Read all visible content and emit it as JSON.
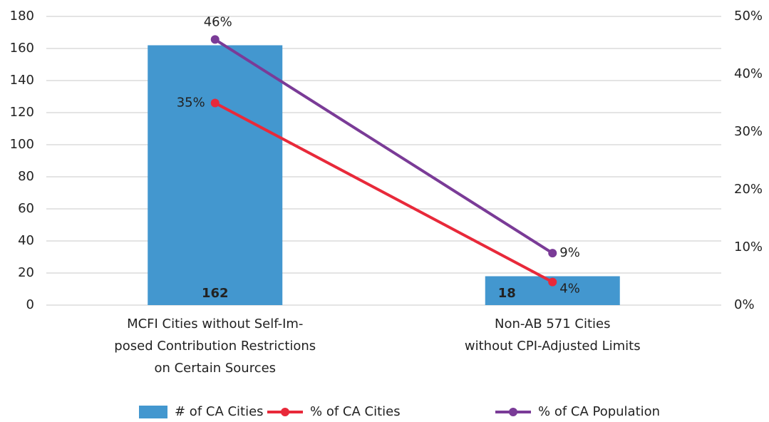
{
  "chart_data": {
    "type": "bar-line",
    "categories": [
      [
        "MCFI Cities without Self-Im-",
        "posed Contribution Restrictions",
        "on Certain Sources"
      ],
      [
        "Non-AB 571 Cities",
        "without CPI-Adjusted Limits"
      ]
    ],
    "series": [
      {
        "name": "# of CA Cities",
        "type": "bar",
        "color": "#4397cf",
        "values": [
          162,
          18
        ]
      },
      {
        "name": "% of CA Cities",
        "type": "line",
        "axis": "y2",
        "color": "#e8293a",
        "values": [
          35,
          4
        ],
        "value_labels": [
          "35%",
          "4%"
        ]
      },
      {
        "name": "% of CA Population",
        "type": "line",
        "axis": "y2",
        "color": "#7a3b97",
        "values": [
          46,
          9
        ],
        "value_labels": [
          "46%",
          "9%"
        ]
      }
    ],
    "ylim": [
      0,
      180
    ],
    "yticks": [
      0,
      20,
      40,
      60,
      80,
      100,
      120,
      140,
      160,
      180
    ],
    "y2lim": [
      0,
      50
    ],
    "y2ticks": [
      {
        "value": 0,
        "label": "0%"
      },
      {
        "value": 10,
        "label": "10%"
      },
      {
        "value": 20,
        "label": "20%"
      },
      {
        "value": 30,
        "label": "30%"
      },
      {
        "value": 40,
        "label": "40%"
      },
      {
        "value": 50,
        "label": "50%"
      }
    ],
    "grid": true,
    "legend": "bottom"
  }
}
